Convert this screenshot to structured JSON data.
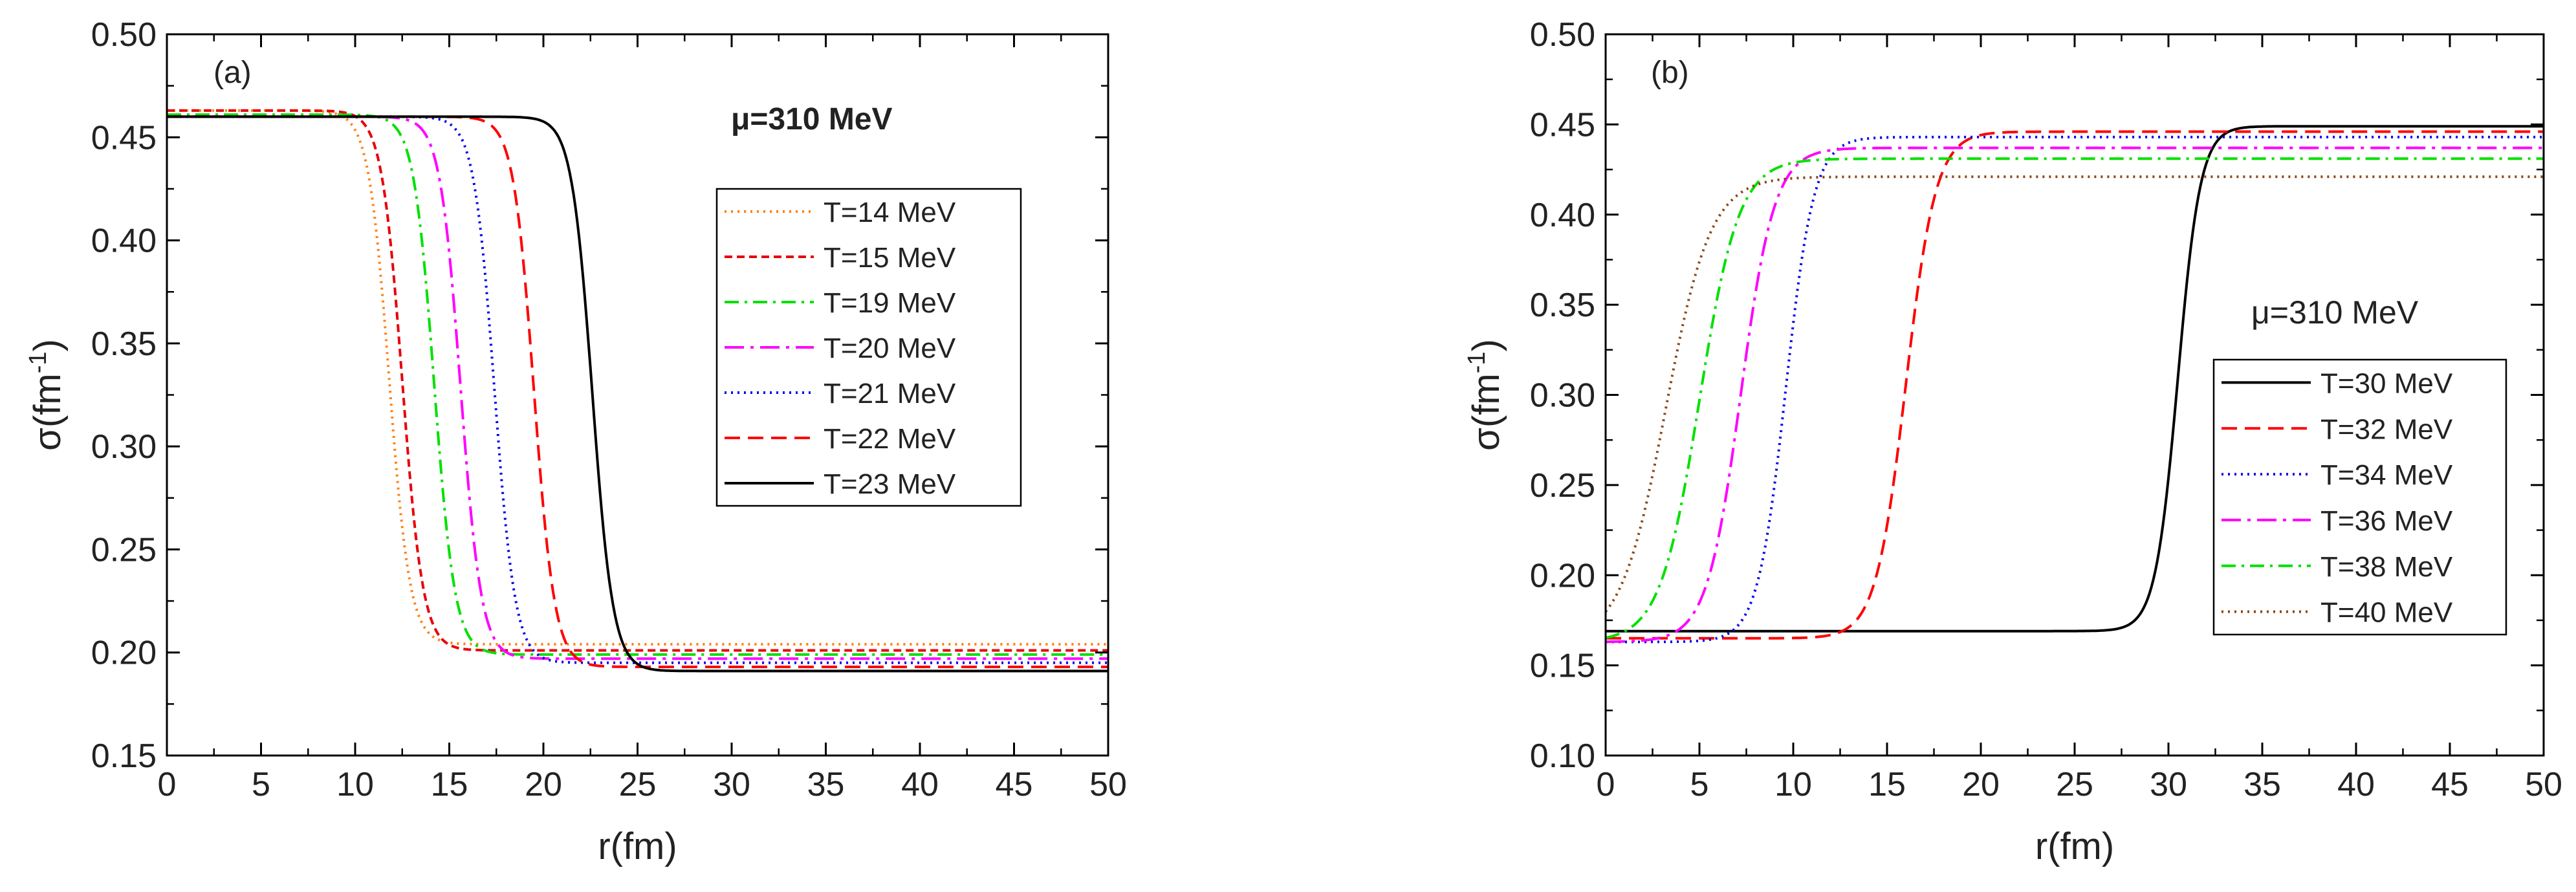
{
  "chart_data": [
    {
      "type": "line",
      "panel_label": "(a)",
      "annotation": "μ=310 MeV",
      "xlabel": "r(fm)",
      "ylabel_base": "σ(fm",
      "ylabel_sup": "-1",
      "ylabel_close": ")",
      "xlim": [
        0,
        50
      ],
      "ylim": [
        0.15,
        0.5
      ],
      "xticks": [
        "0",
        "5",
        "10",
        "15",
        "20",
        "25",
        "30",
        "35",
        "40",
        "45",
        "50"
      ],
      "yticks": [
        "0.15",
        "0.20",
        "0.25",
        "0.30",
        "0.35",
        "0.40",
        "0.45",
        "0.50"
      ],
      "legend_position": "center-right",
      "series": [
        {
          "name": "T=14 MeV",
          "color": "#FF7F0E",
          "dash": "dotted",
          "y_inner": 0.463,
          "y_outer": 0.204,
          "r_mid": 11.8,
          "width": 0.55
        },
        {
          "name": "T=15 MeV",
          "color": "#E8000B",
          "dash": "short-dash",
          "y_inner": 0.463,
          "y_outer": 0.201,
          "r_mid": 12.5,
          "width": 0.55
        },
        {
          "name": "T=19 MeV",
          "color": "#00E000",
          "dash": "dash-dot",
          "y_inner": 0.461,
          "y_outer": 0.199,
          "r_mid": 14.2,
          "width": 0.55
        },
        {
          "name": "T=20 MeV",
          "color": "#FF00FF",
          "dash": "long-dash-dot",
          "y_inner": 0.46,
          "y_outer": 0.197,
          "r_mid": 15.6,
          "width": 0.55
        },
        {
          "name": "T=21 MeV",
          "color": "#0000EE",
          "dash": "dotted",
          "y_inner": 0.46,
          "y_outer": 0.195,
          "r_mid": 17.4,
          "width": 0.55
        },
        {
          "name": "T=22 MeV",
          "color": "#FF0000",
          "dash": "dash",
          "y_inner": 0.46,
          "y_outer": 0.193,
          "r_mid": 19.5,
          "width": 0.55
        },
        {
          "name": "T=23 MeV",
          "color": "#000000",
          "dash": "solid",
          "y_inner": 0.46,
          "y_outer": 0.191,
          "r_mid": 22.6,
          "width": 0.55
        }
      ]
    },
    {
      "type": "line",
      "panel_label": "(b)",
      "annotation": "μ=310 MeV",
      "xlabel": "r(fm)",
      "ylabel_base": "σ(fm",
      "ylabel_sup": "-1",
      "ylabel_close": ")",
      "xlim": [
        0,
        50
      ],
      "ylim": [
        0.1,
        0.5
      ],
      "xticks": [
        "0",
        "5",
        "10",
        "15",
        "20",
        "25",
        "30",
        "35",
        "40",
        "45",
        "50"
      ],
      "yticks": [
        "0.10",
        "0.15",
        "0.20",
        "0.25",
        "0.30",
        "0.35",
        "0.40",
        "0.45",
        "0.50"
      ],
      "legend_position": "lower-right",
      "series": [
        {
          "name": "T=30 MeV",
          "color": "#000000",
          "dash": "solid",
          "y_inner": 0.169,
          "y_outer": 0.449,
          "r_mid": 30.5,
          "width": 0.6
        },
        {
          "name": "T=32 MeV",
          "color": "#FF0000",
          "dash": "dash",
          "y_inner": 0.165,
          "y_outer": 0.446,
          "r_mid": 16.0,
          "width": 0.8
        },
        {
          "name": "T=34 MeV",
          "color": "#0000EE",
          "dash": "dotted",
          "y_inner": 0.163,
          "y_outer": 0.443,
          "r_mid": 9.6,
          "width": 0.75
        },
        {
          "name": "T=36 MeV",
          "color": "#FF00FF",
          "dash": "long-dash-dot",
          "y_inner": 0.163,
          "y_outer": 0.437,
          "r_mid": 7.2,
          "width": 0.9
        },
        {
          "name": "T=38 MeV",
          "color": "#00E000",
          "dash": "dash-dot",
          "y_inner": 0.163,
          "y_outer": 0.431,
          "r_mid": 5.0,
          "width": 1.05
        },
        {
          "name": "T=40 MeV",
          "color": "#8B4513",
          "dash": "dotted",
          "y_inner": 0.163,
          "y_outer": 0.421,
          "r_mid": 3.2,
          "width": 1.2
        }
      ]
    }
  ]
}
